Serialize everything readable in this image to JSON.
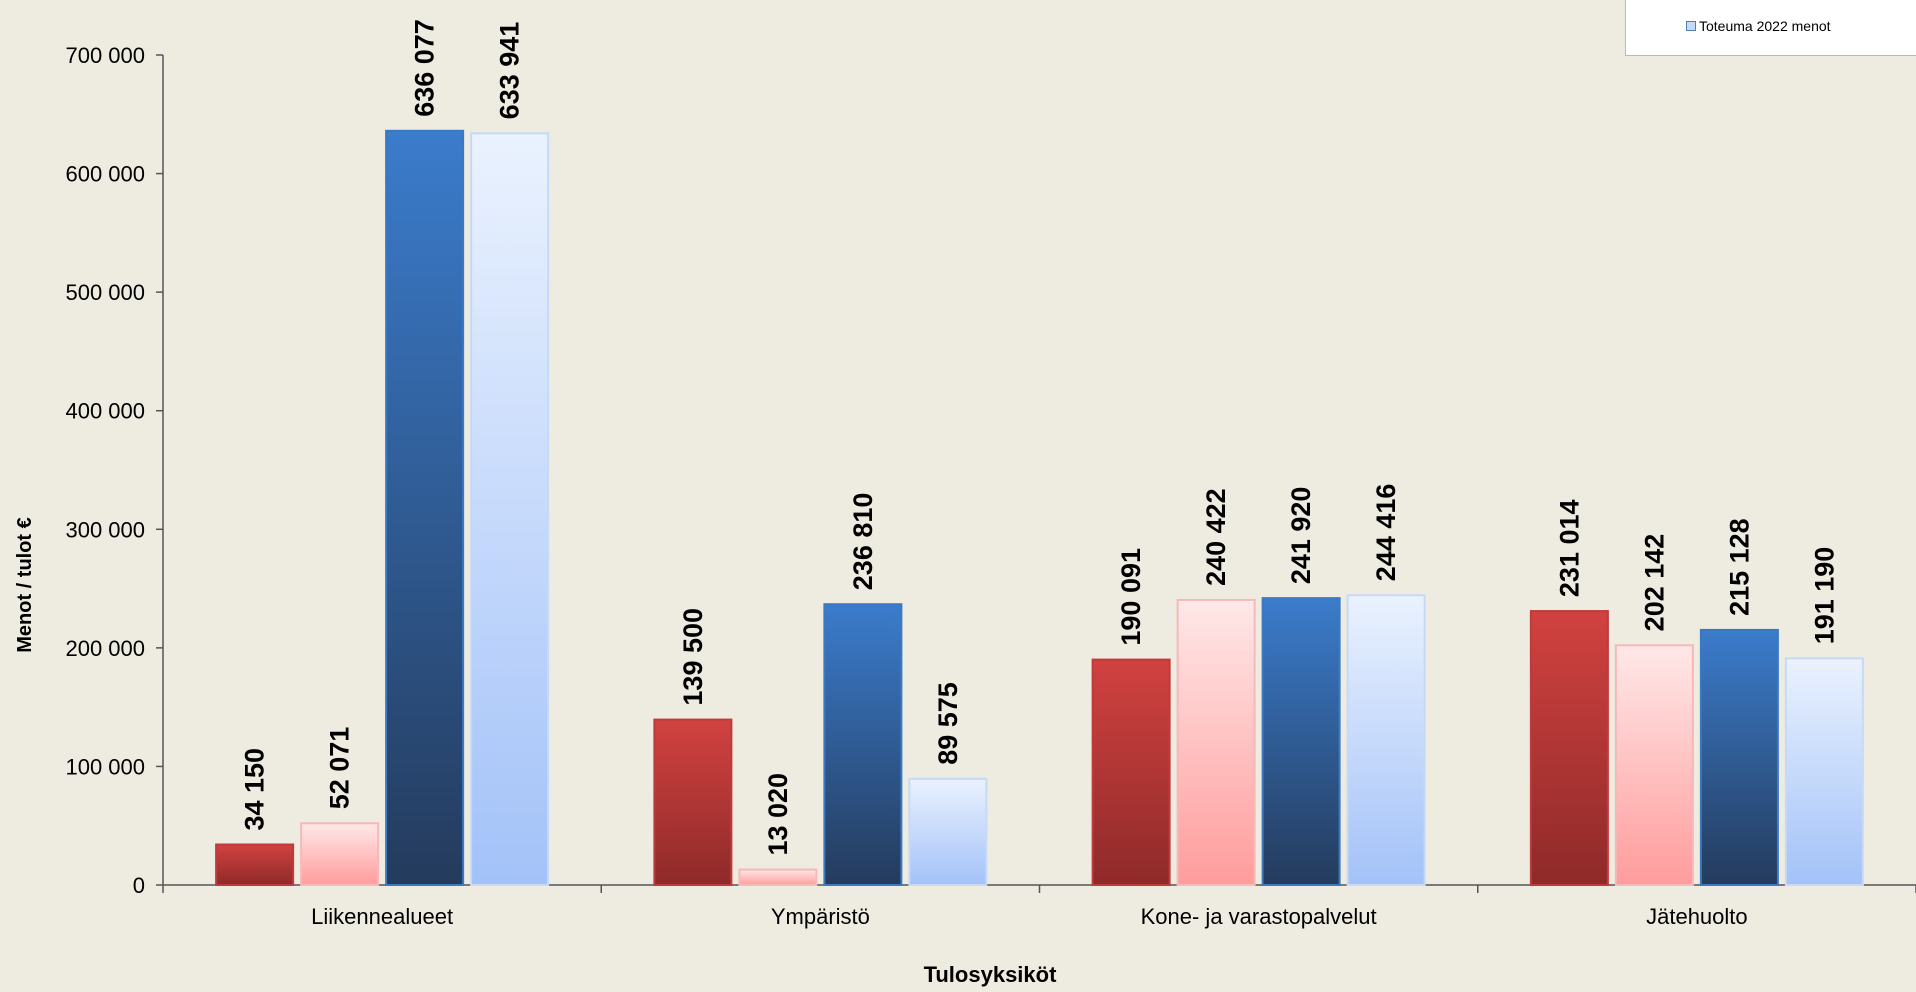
{
  "chart_data": {
    "type": "bar",
    "title": "",
    "xlabel": "Tulosyksiköt",
    "ylabel": "Menot / tulot €",
    "ylim": [
      0,
      700000
    ],
    "yticks": [
      0,
      100000,
      200000,
      300000,
      400000,
      500000,
      600000,
      700000
    ],
    "ytick_labels": [
      "0",
      "100 000",
      "200 000",
      "300 000",
      "400 000",
      "500 000",
      "600 000",
      "700 000"
    ],
    "categories": [
      "Liikennealueet",
      "Ympäristö",
      "Kone- ja varastopalvelut",
      "Jätehuolto"
    ],
    "series": [
      {
        "values": [
          34150,
          139500,
          190091,
          231014
        ],
        "labels": [
          "34 150",
          "139 500",
          "190 091",
          "231 014"
        ],
        "color": "#c0393b",
        "gradient": [
          "#d14240",
          "#8e2a29"
        ]
      },
      {
        "values": [
          52071,
          13020,
          240422,
          202142
        ],
        "labels": [
          "52 071",
          "13 020",
          "240 422",
          "202 142"
        ],
        "color": "#f6b8b8",
        "gradient": [
          "#ffe8e8",
          "#ff9c9c"
        ]
      },
      {
        "values": [
          636077,
          236810,
          241920,
          215128
        ],
        "labels": [
          "636 077",
          "236 810",
          "241 920",
          "215 128"
        ],
        "color": "#3a78c4",
        "gradient": [
          "#3b7ccc",
          "#243b5c"
        ]
      },
      {
        "name": "Toteuma 2022 menot",
        "values": [
          633941,
          89575,
          244416,
          191190
        ],
        "labels": [
          "633 941",
          "89 575",
          "244 416",
          "191 190"
        ],
        "color": "#c6daf8",
        "gradient": [
          "#eaf2fe",
          "#a3c2f8"
        ]
      }
    ],
    "grid": false,
    "legend_position": "top-right"
  },
  "legend": {
    "items": [
      {
        "label": "Toteuma 2022 menot",
        "color": "#c6daf8"
      }
    ]
  }
}
